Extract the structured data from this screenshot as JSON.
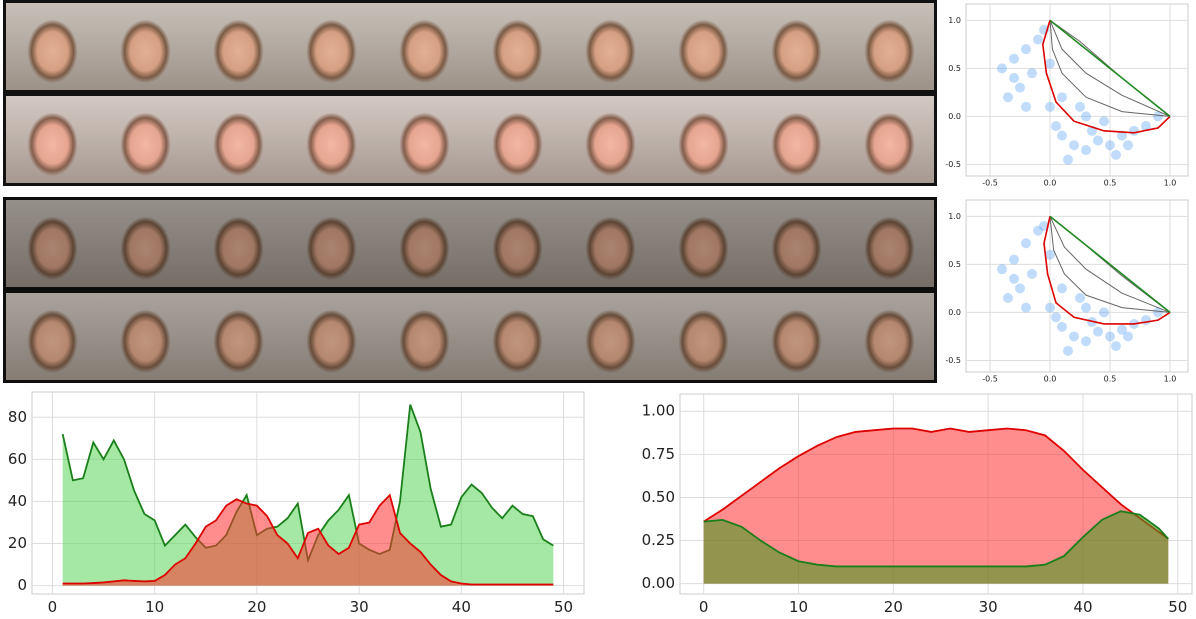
{
  "chart_data": [
    {
      "type": "scatter",
      "points": {
        "color": "#4a9cf0",
        "x": [
          -0.4,
          -0.3,
          -0.2,
          -0.1,
          -0.25,
          -0.35,
          -0.15,
          0,
          0.05,
          0.1,
          0.2,
          0.3,
          0.4,
          0.5,
          0.6,
          0.7,
          0.8,
          0.9,
          0.3,
          0.45,
          0.1,
          -0.05,
          -0.2,
          0.15,
          0.25,
          0.55,
          0.65,
          -0.3,
          0.0,
          0.35
        ],
        "y": [
          0.5,
          0.6,
          0.7,
          0.8,
          0.3,
          0.2,
          0.45,
          0.1,
          -0.1,
          -0.2,
          -0.3,
          -0.35,
          -0.25,
          -0.3,
          -0.2,
          -0.15,
          -0.1,
          0.0,
          0.0,
          -0.05,
          0.2,
          0.9,
          0.1,
          -0.45,
          0.1,
          -0.4,
          -0.3,
          0.4,
          0.55,
          -0.15
        ]
      },
      "series": [
        {
          "color": "#666666",
          "x": [
            0,
            0.02,
            0.1,
            0.3,
            0.6,
            1
          ],
          "y": [
            1,
            0.7,
            0.45,
            0.2,
            0.05,
            0
          ]
        },
        {
          "color": "#666666",
          "x": [
            0,
            0.1,
            0.3,
            0.6,
            1
          ],
          "y": [
            1,
            0.7,
            0.45,
            0.22,
            0
          ]
        },
        {
          "color": "#666666",
          "x": [
            0,
            0.25,
            0.6,
            1
          ],
          "y": [
            1,
            0.78,
            0.4,
            0
          ]
        },
        {
          "color": "#dd0000",
          "x": [
            0,
            -0.06,
            -0.03,
            0.05,
            0.2,
            0.45,
            0.7,
            0.9,
            1
          ],
          "y": [
            1,
            0.75,
            0.45,
            0.15,
            -0.05,
            -0.15,
            -0.17,
            -0.12,
            0
          ]
        },
        {
          "color": "#228822",
          "x": [
            0,
            1
          ],
          "y": [
            1,
            0
          ]
        }
      ],
      "xlim": [
        -0.7,
        1.15
      ],
      "ylim": [
        -0.62,
        1.17
      ],
      "xticks": [
        -0.5,
        {
          "value": 0,
          "label": "0.0"
        },
        0.5,
        {
          "value": 1,
          "label": "1.0"
        }
      ],
      "yticks": [
        -0.5,
        {
          "value": 0,
          "label": "0.0"
        },
        0.5,
        {
          "value": 1,
          "label": "1.0"
        }
      ],
      "grid": true
    },
    {
      "type": "scatter",
      "points": {
        "color": "#4a9cf0",
        "x": [
          -0.4,
          -0.3,
          -0.2,
          -0.1,
          -0.25,
          -0.35,
          -0.15,
          0,
          0.05,
          0.1,
          0.2,
          0.3,
          0.4,
          0.5,
          0.6,
          0.7,
          0.8,
          0.9,
          0.3,
          0.45,
          0.1,
          -0.05,
          -0.2,
          0.15,
          0.25,
          0.55,
          0.65,
          -0.3,
          0.0,
          0.35
        ],
        "y": [
          0.45,
          0.55,
          0.72,
          0.85,
          0.25,
          0.15,
          0.4,
          0.05,
          -0.05,
          -0.15,
          -0.25,
          -0.3,
          -0.2,
          -0.25,
          -0.18,
          -0.12,
          -0.08,
          0.0,
          0.05,
          0.0,
          0.25,
          0.9,
          0.05,
          -0.4,
          0.15,
          -0.35,
          -0.25,
          0.35,
          0.6,
          -0.1
        ]
      },
      "series": [
        {
          "color": "#666666",
          "x": [
            0,
            0.03,
            0.12,
            0.3,
            0.6,
            1
          ],
          "y": [
            1,
            0.65,
            0.4,
            0.18,
            0.05,
            0
          ]
        },
        {
          "color": "#666666",
          "x": [
            0,
            0.12,
            0.3,
            0.6,
            1
          ],
          "y": [
            1,
            0.68,
            0.45,
            0.2,
            0
          ]
        },
        {
          "color": "#666666",
          "x": [
            0,
            0.25,
            0.6,
            1
          ],
          "y": [
            1,
            0.75,
            0.38,
            0
          ]
        },
        {
          "color": "#dd0000",
          "x": [
            0,
            -0.05,
            -0.02,
            0.05,
            0.2,
            0.45,
            0.7,
            0.9,
            1
          ],
          "y": [
            1,
            0.72,
            0.4,
            0.1,
            -0.05,
            -0.12,
            -0.12,
            -0.08,
            0
          ]
        },
        {
          "color": "#228822",
          "x": [
            0,
            1
          ],
          "y": [
            1,
            0
          ]
        }
      ],
      "xlim": [
        -0.7,
        1.15
      ],
      "ylim": [
        -0.62,
        1.17
      ],
      "xticks": [
        -0.5,
        {
          "value": 0,
          "label": "0.0"
        },
        0.5,
        {
          "value": 1,
          "label": "1.0"
        }
      ],
      "yticks": [
        -0.5,
        {
          "value": 0,
          "label": "0.0"
        },
        0.5,
        {
          "value": 1,
          "label": "1.0"
        }
      ],
      "grid": true
    },
    {
      "type": "area",
      "x": [
        1,
        2,
        3,
        4,
        5,
        6,
        7,
        8,
        9,
        10,
        11,
        12,
        13,
        14,
        15,
        16,
        17,
        18,
        19,
        20,
        21,
        22,
        23,
        24,
        25,
        26,
        27,
        28,
        29,
        30,
        31,
        32,
        33,
        34,
        35,
        36,
        37,
        38,
        39,
        40,
        41,
        42,
        43,
        44,
        45,
        46,
        47,
        48,
        49
      ],
      "series": [
        {
          "color": "#1a7f1a",
          "fill": "#5ad65a",
          "values": [
            72,
            50,
            51,
            68,
            60,
            69,
            60,
            45,
            34,
            31,
            19,
            24,
            29,
            23,
            18,
            19,
            24,
            35,
            43,
            24,
            27,
            28,
            32,
            39,
            12,
            24,
            31,
            36,
            43,
            20,
            17,
            15,
            17,
            40,
            86,
            73,
            46,
            28,
            29,
            42,
            48,
            44,
            37,
            32,
            38,
            34,
            33,
            22,
            19
          ]
        },
        {
          "color": "#dd0000",
          "fill": "#ff3030",
          "values": [
            1,
            1,
            1,
            1.2,
            1.5,
            2,
            2.5,
            2.2,
            2,
            2.2,
            5,
            10,
            13,
            20,
            28,
            31,
            38,
            41,
            39,
            38,
            33,
            24,
            20,
            13,
            25,
            27,
            19,
            15,
            18,
            29,
            30,
            38,
            43,
            25,
            20,
            16,
            10,
            5,
            2,
            1,
            0.5,
            0.5,
            0.5,
            0.5,
            0.5,
            0.5,
            0.5,
            0.5,
            0.5
          ]
        }
      ],
      "xlim": [
        -2,
        52
      ],
      "ylim": [
        -4,
        92
      ],
      "xticks": [
        0,
        10,
        20,
        30,
        40,
        50
      ],
      "yticks": [
        0,
        20,
        40,
        60,
        80
      ],
      "grid": true
    },
    {
      "type": "area",
      "x": [
        0,
        2,
        4,
        6,
        8,
        10,
        12,
        14,
        16,
        18,
        20,
        22,
        24,
        26,
        28,
        30,
        32,
        34,
        36,
        38,
        40,
        42,
        44,
        46,
        48,
        49
      ],
      "series": [
        {
          "color": "#dd0000",
          "fill": "#ff3030",
          "values": [
            0.36,
            0.43,
            0.51,
            0.59,
            0.67,
            0.74,
            0.8,
            0.85,
            0.88,
            0.89,
            0.9,
            0.9,
            0.88,
            0.9,
            0.88,
            0.89,
            0.9,
            0.89,
            0.86,
            0.77,
            0.66,
            0.56,
            0.46,
            0.38,
            0.3,
            0.26
          ]
        },
        {
          "color": "#1a7f1a",
          "fill": "#3a9a1a",
          "values": [
            0.36,
            0.37,
            0.33,
            0.25,
            0.18,
            0.13,
            0.11,
            0.1,
            0.1,
            0.1,
            0.1,
            0.1,
            0.1,
            0.1,
            0.1,
            0.1,
            0.1,
            0.1,
            0.11,
            0.16,
            0.27,
            0.37,
            0.42,
            0.4,
            0.32,
            0.26
          ]
        }
      ],
      "xlim": [
        -2.5,
        51.5
      ],
      "ylim": [
        -0.06,
        1.1
      ],
      "xticks": [
        0,
        10,
        20,
        30,
        40,
        50
      ],
      "yticks": [
        {
          "value": 0,
          "label": "0.00"
        },
        {
          "value": 0.25,
          "label": "0.25"
        },
        {
          "value": 0.5,
          "label": "0.50"
        },
        {
          "value": 0.75,
          "label": "0.75"
        },
        {
          "value": 1,
          "label": "1.00"
        }
      ],
      "grid": true
    }
  ]
}
